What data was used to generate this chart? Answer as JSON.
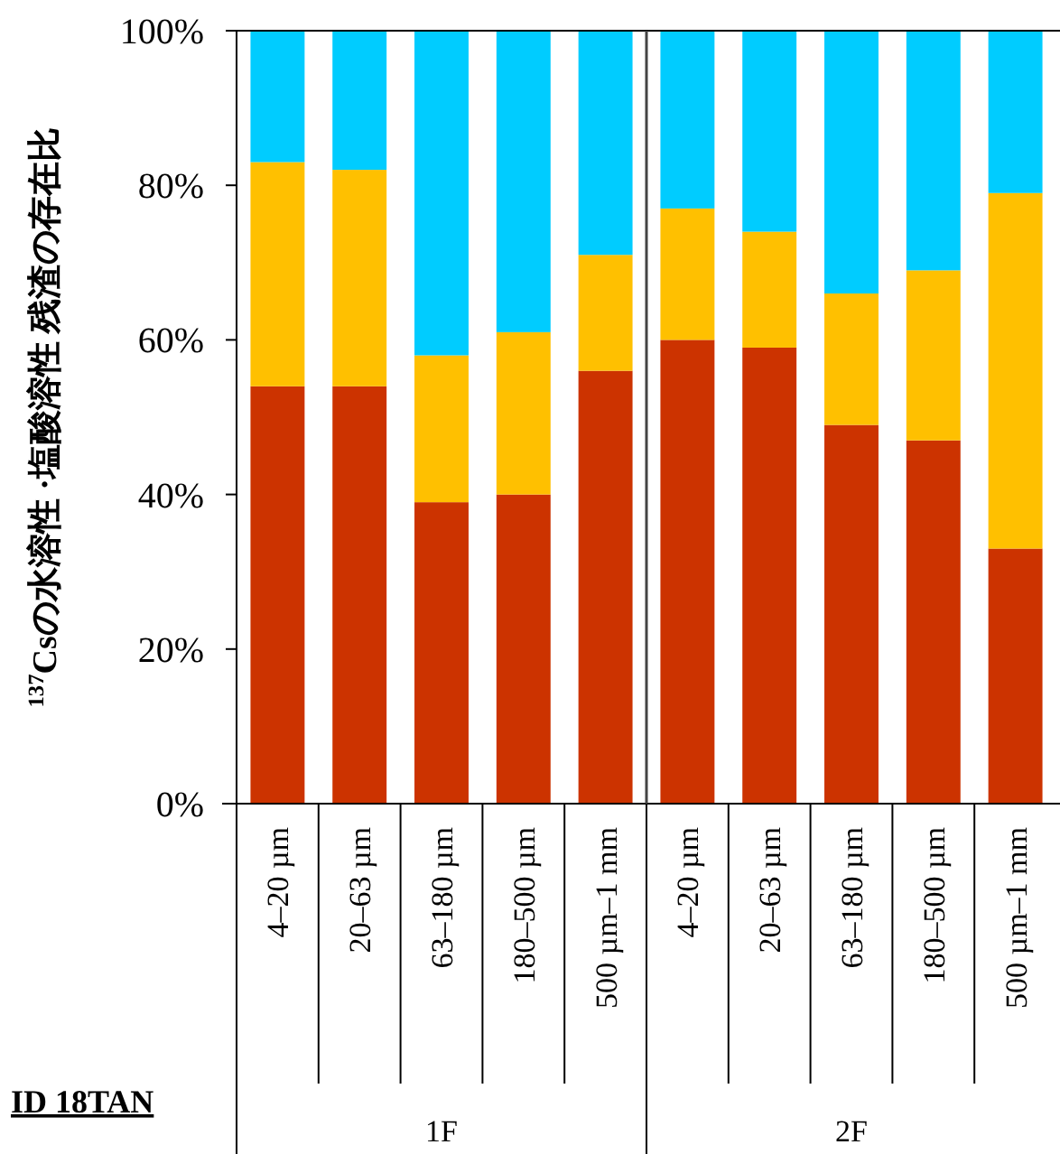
{
  "chart_data": {
    "type": "bar",
    "stacked": true,
    "ylabel": "$^{137}$Csの水溶性 ·塩酸溶性 残渣の存在比",
    "categories": [
      "4–20 µm",
      "20–63 µm",
      "63–180 µm",
      "180–500 µm",
      "500 µm–1 mm",
      "4–20 µm",
      "20–63 µm",
      "63–180 µm",
      "180–500 µm",
      "500 µm–1 mm"
    ],
    "series": [
      {
        "color": "#cc3300",
        "values": [
          54,
          54,
          39,
          40,
          56,
          60,
          59,
          49,
          47,
          33
        ]
      },
      {
        "color": "#ffc000",
        "values": [
          29,
          28,
          19,
          21,
          15,
          17,
          15,
          17,
          22,
          46
        ]
      },
      {
        "color": "#00ccff",
        "values": [
          17,
          18,
          42,
          39,
          29,
          23,
          26,
          34,
          31,
          21
        ]
      }
    ],
    "ylim": [
      0,
      100
    ],
    "yticks": [
      {
        "value": 0,
        "label": "0%"
      },
      {
        "value": 20,
        "label": "20%"
      },
      {
        "value": 40,
        "label": "40%"
      },
      {
        "value": 60,
        "label": "60%"
      },
      {
        "value": 80,
        "label": "80%"
      },
      {
        "value": 100,
        "label": "100%"
      }
    ],
    "grid": false,
    "annotations": [
      "ID 18TAN",
      "1F",
      "2F"
    ]
  }
}
